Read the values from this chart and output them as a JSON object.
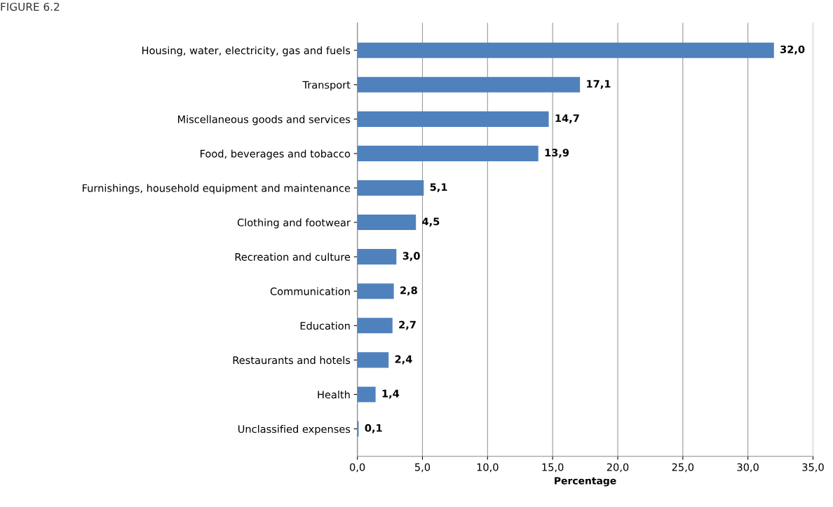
{
  "chart_data": {
    "type": "bar",
    "orientation": "horizontal",
    "title": "FIGURE 6.2",
    "xlabel": "Percentage",
    "categories": [
      "Housing, water, electricity, gas and fuels",
      "Transport",
      "Miscellaneous goods and services",
      "Food, beverages and tobacco",
      "Furnishings, household equipment and maintenance",
      "Clothing and footwear",
      "Recreation and culture",
      "Communication",
      "Education",
      "Restaurants and hotels",
      "Health",
      "Unclassified expenses"
    ],
    "values": [
      32.0,
      17.1,
      14.7,
      13.9,
      5.1,
      4.5,
      3.0,
      2.8,
      2.7,
      2.4,
      1.4,
      0.1
    ],
    "value_labels": [
      "32,0",
      "17,1",
      "14,7",
      "13,9",
      "5,1",
      "4,5",
      "3,0",
      "2,8",
      "2,7",
      "2,4",
      "1,4",
      "0,1"
    ],
    "color": "#4f81bd",
    "xlim": [
      0,
      35
    ],
    "xticks": [
      {
        "value": 0,
        "label": "0,0"
      },
      {
        "value": 5,
        "label": "5,0"
      },
      {
        "value": 10,
        "label": "10,0"
      },
      {
        "value": 15,
        "label": "15,0"
      },
      {
        "value": 20,
        "label": "20,0"
      },
      {
        "value": 25,
        "label": "25,0"
      },
      {
        "value": 30,
        "label": "30,0"
      },
      {
        "value": 35,
        "label": "35,0"
      }
    ],
    "grid": "x",
    "legend": false
  }
}
